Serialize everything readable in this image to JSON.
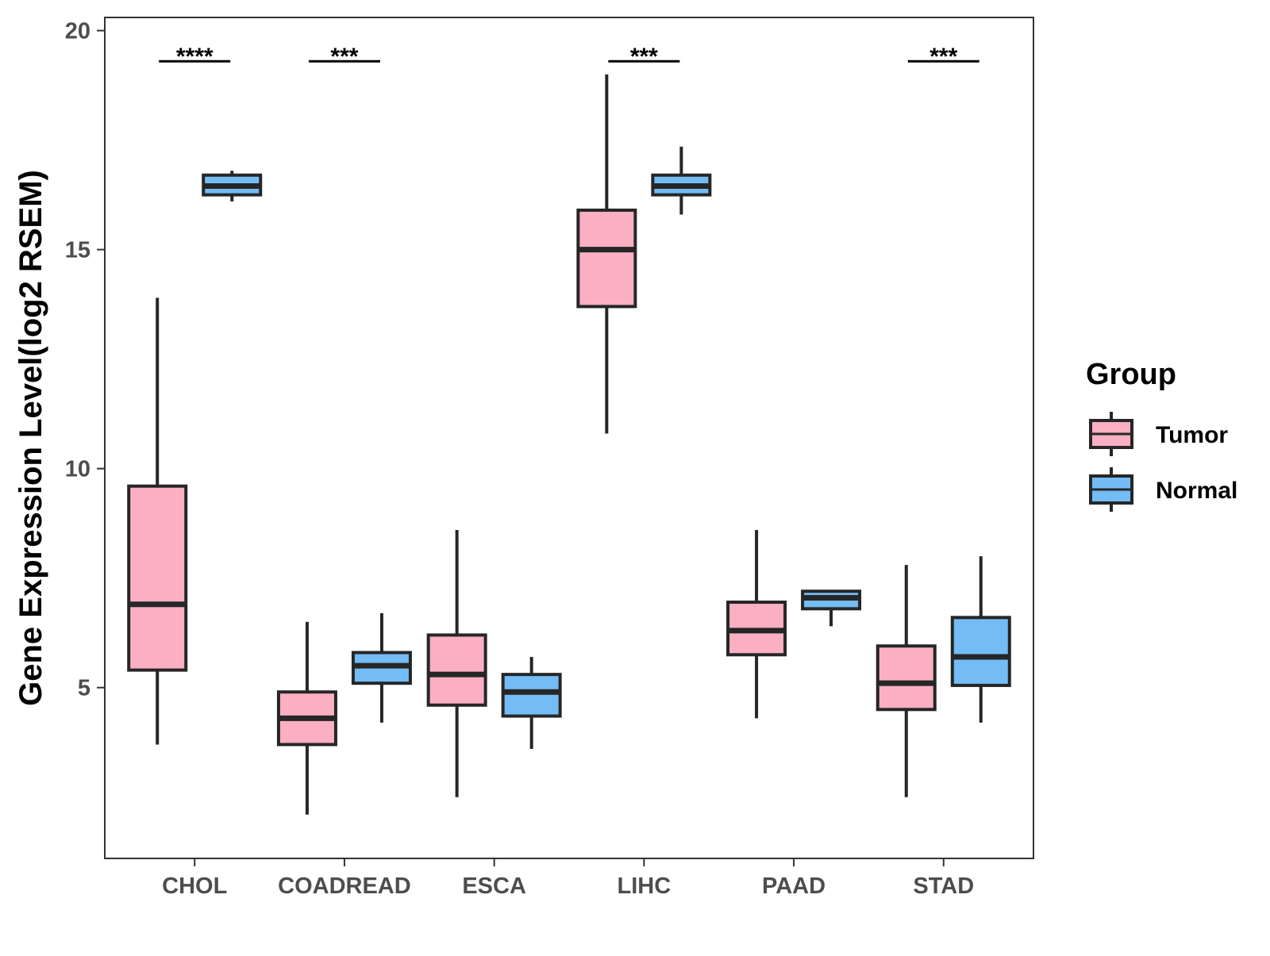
{
  "chart_data": {
    "type": "boxplot",
    "title": "",
    "xlabel": "",
    "ylabel": "Gene Expression Level(log2 RSEM)",
    "ylim": [
      1.1,
      20.3
    ],
    "yticks": [
      5,
      10,
      15,
      20
    ],
    "categories": [
      "CHOL",
      "COADREAD",
      "ESCA",
      "LIHC",
      "PAAD",
      "STAD"
    ],
    "legend": {
      "title": "Group",
      "position": "right",
      "entries": [
        {
          "name": "Tumor",
          "color": "#FBAFC3"
        },
        {
          "name": "Normal",
          "color": "#74BCF5"
        }
      ]
    },
    "series": [
      {
        "name": "Tumor",
        "color": "#FBAFC3",
        "boxes": [
          {
            "category": "CHOL",
            "min": 3.7,
            "q1": 5.4,
            "median": 6.9,
            "q3": 9.6,
            "max": 13.9
          },
          {
            "category": "COADREAD",
            "min": 2.1,
            "q1": 3.7,
            "median": 4.3,
            "q3": 4.9,
            "max": 6.5
          },
          {
            "category": "ESCA",
            "min": 2.5,
            "q1": 4.6,
            "median": 5.3,
            "q3": 6.2,
            "max": 8.6
          },
          {
            "category": "LIHC",
            "min": 10.8,
            "q1": 13.7,
            "median": 15.0,
            "q3": 15.9,
            "max": 19.0
          },
          {
            "category": "PAAD",
            "min": 4.3,
            "q1": 5.75,
            "median": 6.3,
            "q3": 6.95,
            "max": 8.6
          },
          {
            "category": "STAD",
            "min": 2.5,
            "q1": 4.5,
            "median": 5.1,
            "q3": 5.95,
            "max": 7.8
          }
        ]
      },
      {
        "name": "Normal",
        "color": "#74BCF5",
        "boxes": [
          {
            "category": "CHOL",
            "min": 16.1,
            "q1": 16.25,
            "median": 16.45,
            "q3": 16.7,
            "max": 16.8
          },
          {
            "category": "COADREAD",
            "min": 4.2,
            "q1": 5.1,
            "median": 5.5,
            "q3": 5.8,
            "max": 6.7
          },
          {
            "category": "ESCA",
            "min": 3.6,
            "q1": 4.35,
            "median": 4.9,
            "q3": 5.3,
            "max": 5.7
          },
          {
            "category": "LIHC",
            "min": 15.8,
            "q1": 16.25,
            "median": 16.45,
            "q3": 16.7,
            "max": 17.35
          },
          {
            "category": "PAAD",
            "min": 6.4,
            "q1": 6.8,
            "median": 7.05,
            "q3": 7.2,
            "max": 7.2
          },
          {
            "category": "STAD",
            "min": 4.2,
            "q1": 5.05,
            "median": 5.7,
            "q3": 6.6,
            "max": 8.0
          }
        ]
      }
    ],
    "significance": [
      {
        "category": "CHOL",
        "label": "****"
      },
      {
        "category": "COADREAD",
        "label": "***"
      },
      {
        "category": "LIHC",
        "label": "***"
      },
      {
        "category": "STAD",
        "label": "***"
      }
    ]
  }
}
